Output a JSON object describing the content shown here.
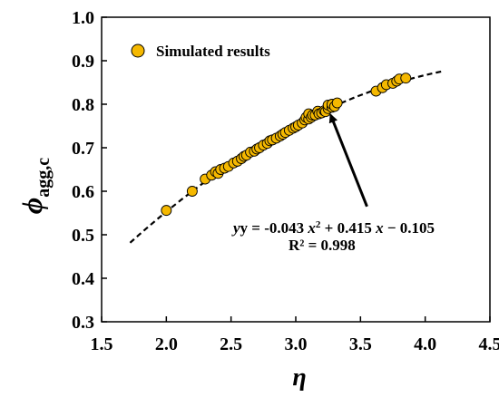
{
  "chart_data": {
    "type": "scatter",
    "xlabel": "η",
    "ylabel_main": "ϕ",
    "ylabel_sub": "agg,c",
    "xlim": [
      1.5,
      4.5
    ],
    "ylim": [
      0.3,
      1.0
    ],
    "xticks": [
      "1.5",
      "2.0",
      "2.5",
      "3.0",
      "3.5",
      "4.0",
      "4.5"
    ],
    "yticks": [
      "0.3",
      "0.4",
      "0.5",
      "0.6",
      "0.7",
      "0.8",
      "0.9",
      "1.0"
    ],
    "grid": false,
    "legend_position": "top-left",
    "series": [
      {
        "name": "Simulated results",
        "marker_color": "#F5B800",
        "points": [
          [
            2.0,
            0.556
          ],
          [
            2.2,
            0.6
          ],
          [
            2.3,
            0.628
          ],
          [
            2.35,
            0.637
          ],
          [
            2.38,
            0.645
          ],
          [
            2.4,
            0.641
          ],
          [
            2.42,
            0.65
          ],
          [
            2.45,
            0.653
          ],
          [
            2.48,
            0.657
          ],
          [
            2.52,
            0.665
          ],
          [
            2.55,
            0.669
          ],
          [
            2.58,
            0.675
          ],
          [
            2.6,
            0.68
          ],
          [
            2.62,
            0.683
          ],
          [
            2.65,
            0.69
          ],
          [
            2.68,
            0.692
          ],
          [
            2.7,
            0.697
          ],
          [
            2.72,
            0.7
          ],
          [
            2.75,
            0.706
          ],
          [
            2.78,
            0.71
          ],
          [
            2.8,
            0.716
          ],
          [
            2.82,
            0.718
          ],
          [
            2.85,
            0.722
          ],
          [
            2.88,
            0.727
          ],
          [
            2.9,
            0.731
          ],
          [
            2.92,
            0.735
          ],
          [
            2.95,
            0.74
          ],
          [
            2.98,
            0.745
          ],
          [
            3.0,
            0.748
          ],
          [
            3.02,
            0.752
          ],
          [
            3.05,
            0.757
          ],
          [
            3.07,
            0.764
          ],
          [
            3.08,
            0.77
          ],
          [
            3.1,
            0.766
          ],
          [
            3.1,
            0.778
          ],
          [
            3.12,
            0.77
          ],
          [
            3.13,
            0.775
          ],
          [
            3.15,
            0.775
          ],
          [
            3.17,
            0.784
          ],
          [
            3.18,
            0.778
          ],
          [
            3.2,
            0.78
          ],
          [
            3.22,
            0.785
          ],
          [
            3.23,
            0.783
          ],
          [
            3.25,
            0.79
          ],
          [
            3.25,
            0.798
          ],
          [
            3.28,
            0.793
          ],
          [
            3.28,
            0.8
          ],
          [
            3.3,
            0.795
          ],
          [
            3.32,
            0.803
          ],
          [
            3.62,
            0.83
          ],
          [
            3.67,
            0.838
          ],
          [
            3.7,
            0.845
          ],
          [
            3.75,
            0.848
          ],
          [
            3.78,
            0.853
          ],
          [
            3.8,
            0.858
          ],
          [
            3.85,
            0.86
          ]
        ]
      }
    ],
    "fit": {
      "a": -0.043,
      "b": 0.415,
      "c": -0.105,
      "x_range": [
        1.72,
        4.15
      ],
      "style": "dashed"
    },
    "annotation": {
      "equation_prefix": "y = -0.043 ",
      "x_var": "x",
      "sq": "2",
      "equation_mid": " + 0.415 ",
      "equation_end": " − 0.105",
      "r2_text": "R² = 0.998",
      "arrow_from": [
        3.55,
        0.565
      ],
      "arrow_to": [
        3.27,
        0.775
      ]
    }
  }
}
